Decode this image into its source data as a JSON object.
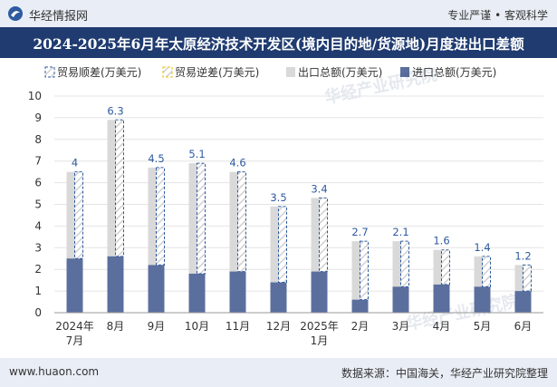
{
  "header": {
    "brand": "华经情报网",
    "slogan": "专业严谨 • 客观科学",
    "title": "2024-2025年6月年太原经济技术开发区(境内目的地/货源地)月度进出口差额"
  },
  "footer": {
    "website": "www.huaon.com",
    "source": "数据来源：中国海关，华经产业研究院整理"
  },
  "watermark": "华经产业研究院",
  "colors": {
    "export": "#d9d9d9",
    "import": "#5b6f9e",
    "surplus_border": "#2e5aa0",
    "deficit_border": "#f0c000",
    "label": "#2e5aa0"
  },
  "chart_data": {
    "type": "bar",
    "title": "2024-2025年6月年太原经济技术开发区(境内目的地/货源地)月度进出口差额",
    "categories": [
      "2024年\n7月",
      "8月",
      "9月",
      "10月",
      "11月",
      "12月",
      "2025年\n1月",
      "2月",
      "3月",
      "4月",
      "5月",
      "6月"
    ],
    "series": [
      {
        "name": "贸易顺差(万美元)",
        "values": [
          4,
          6.3,
          4.5,
          5.1,
          4.6,
          3.5,
          3.4,
          2.7,
          2.1,
          1.6,
          1.4,
          1.2
        ]
      },
      {
        "name": "贸易逆差(万美元)",
        "values": [
          0,
          0,
          0,
          0,
          0,
          0,
          0,
          0,
          0,
          0,
          0,
          0
        ]
      },
      {
        "name": "出口总额(万美元)",
        "values": [
          6.5,
          8.9,
          6.7,
          6.9,
          6.5,
          4.9,
          5.3,
          3.3,
          3.3,
          2.9,
          2.6,
          2.2
        ]
      },
      {
        "name": "进口总额(万美元)",
        "values": [
          2.5,
          2.6,
          2.2,
          1.8,
          1.9,
          1.4,
          1.9,
          0.6,
          1.2,
          1.3,
          1.2,
          1.0
        ]
      }
    ],
    "data_labels": [
      "4",
      "6.3",
      "4.5",
      "5.1",
      "4.6",
      "3.5",
      "3.4",
      "2.7",
      "2.1",
      "1.6",
      "1.4",
      "1.2"
    ],
    "yticks": [
      "0",
      "1",
      "2",
      "3",
      "4",
      "5",
      "6",
      "7",
      "8",
      "9",
      "10"
    ],
    "ylim": [
      0,
      10
    ],
    "xlabel": "",
    "ylabel": "",
    "legend_position": "top"
  }
}
